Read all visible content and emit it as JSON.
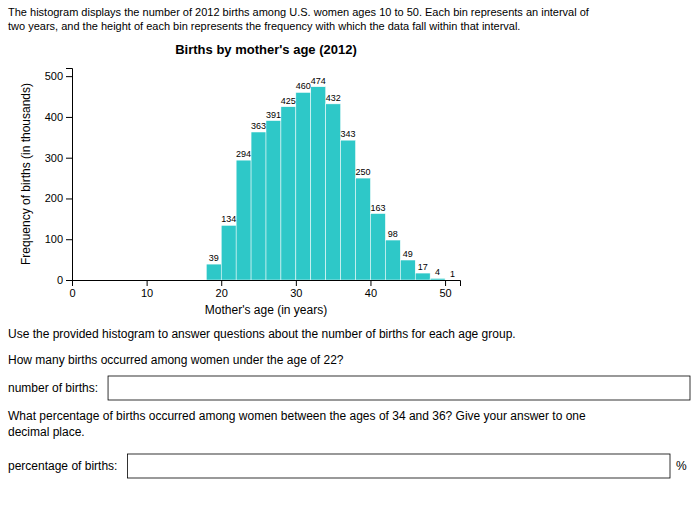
{
  "chart_data": {
    "type": "histogram",
    "title": "Births by mother's age (2012)",
    "xlabel": "Mother's age (in years)",
    "ylabel": "Frequency of births (in thousands)",
    "bins": [
      18,
      20,
      22,
      24,
      26,
      28,
      30,
      32,
      34,
      36,
      38,
      40,
      42,
      44,
      46,
      48,
      50
    ],
    "values": [
      39,
      134,
      294,
      363,
      391,
      425,
      460,
      474,
      432,
      343,
      250,
      163,
      98,
      49,
      17,
      4
    ],
    "color": "#2ec8c8",
    "xlim": [
      0,
      52
    ],
    "ylim": [
      0,
      520
    ],
    "xticks": [
      0,
      10,
      20,
      30,
      40,
      50
    ],
    "yticks": [
      0,
      100,
      200,
      300,
      400,
      500
    ],
    "data_labels": true,
    "annotations": [
      {
        "text": "1",
        "x": 51,
        "y": 1
      }
    ]
  },
  "header_text": "The histogram displays the number of 2012 births among U.S. women ages 10 to 50. Each bin represents an interval of\ntwo years, and the height of each bin represents the frequency with which the data fall within that interval.",
  "instruction_text": "Use the provided histogram to answer questions about the number of births for each age group.",
  "questions": [
    {
      "text": "How many births occurred among women under the age of 22?",
      "answer_label": "number of births:"
    },
    {
      "text": "What percentage of births occurred among women between the ages of 34 and 36? Give your answer to one\ndecimal place.",
      "answer_label": "percentage of births:",
      "answer_unit": "%"
    }
  ]
}
